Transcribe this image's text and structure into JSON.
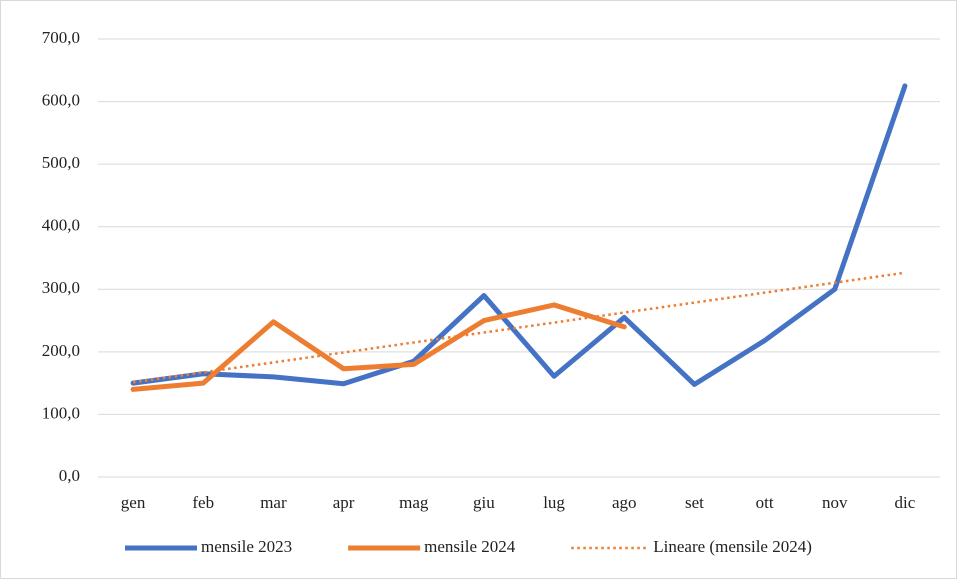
{
  "chart_data": {
    "type": "line",
    "categories": [
      "gen",
      "feb",
      "mar",
      "apr",
      "mag",
      "giu",
      "lug",
      "ago",
      "set",
      "ott",
      "nov",
      "dic"
    ],
    "series": [
      {
        "name": "mensile 2023",
        "color": "#4472c4",
        "values": [
          150,
          165,
          160,
          149,
          185,
          290,
          161,
          255,
          148,
          218,
          300,
          625
        ]
      },
      {
        "name": "mensile 2024",
        "color": "#ed7d31",
        "values": [
          140,
          150,
          248,
          173,
          180,
          250,
          275,
          240,
          null,
          null,
          null,
          null
        ]
      },
      {
        "name": "Lineare (mensile 2024)",
        "color": "#ed7d31",
        "style": "dotted",
        "values": [
          151.3,
          167.2,
          183.1,
          199.0,
          215.0,
          230.9,
          246.8,
          262.8,
          278.7,
          294.6,
          310.5,
          326.5
        ]
      }
    ],
    "ylim": [
      0,
      700
    ],
    "yticks": [
      {
        "value": 0,
        "label": "0,0"
      },
      {
        "value": 100,
        "label": "100,0"
      },
      {
        "value": 200,
        "label": "200,0"
      },
      {
        "value": 300,
        "label": "300,0"
      },
      {
        "value": 400,
        "label": "400,0"
      },
      {
        "value": 500,
        "label": "500,0"
      },
      {
        "value": 600,
        "label": "600,0"
      },
      {
        "value": 700,
        "label": "700,0"
      }
    ],
    "grid": true,
    "legend": "bottom"
  }
}
